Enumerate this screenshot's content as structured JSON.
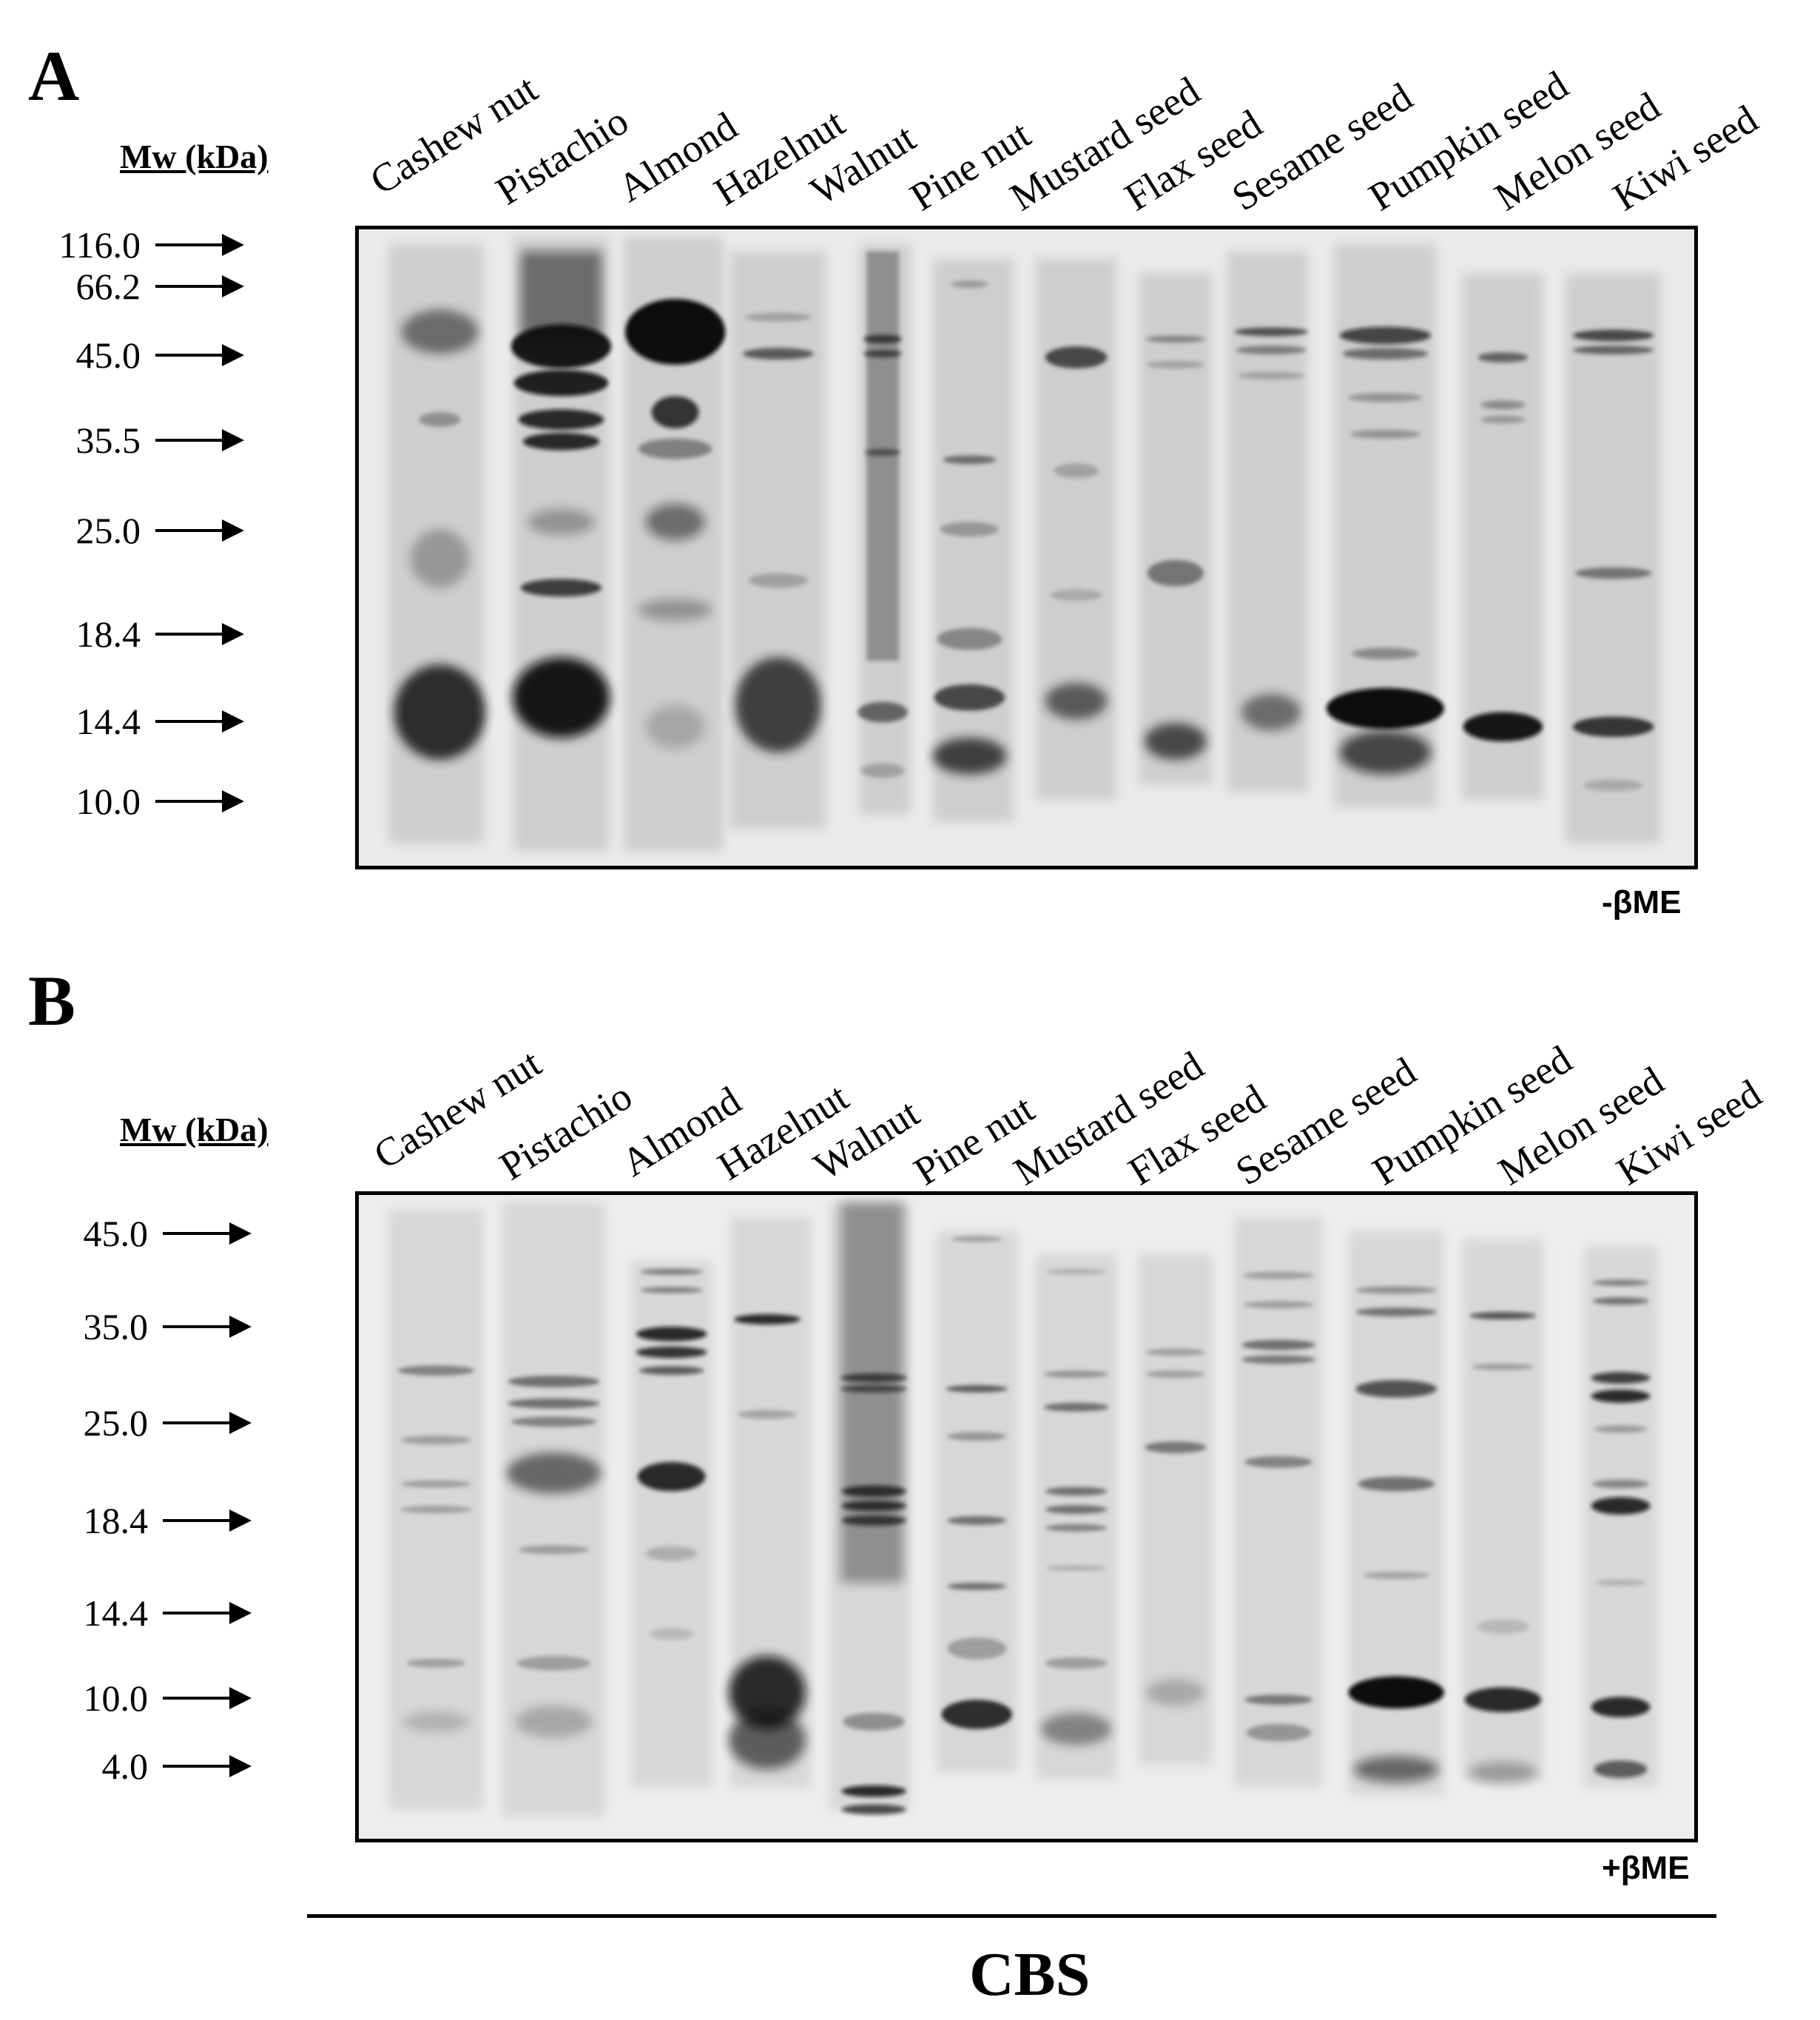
{
  "panel_a": {
    "letter": "A",
    "mw_heading": "Mw (kDa)",
    "lanes": [
      "Cashew nut",
      "Pistachio",
      "Almond",
      "Hazelnut",
      "Walnut",
      "Pine nut",
      "Mustard seed",
      "Flax seed",
      "Sesame seed",
      "Pumpkin seed",
      "Melon seed",
      "Kiwi seed"
    ],
    "markers": [
      "116.0",
      "66.2",
      "45.0",
      "35.5",
      "25.0",
      "18.4",
      "14.4",
      "10.0"
    ],
    "condition": "-βME"
  },
  "panel_b": {
    "letter": "B",
    "mw_heading": "Mw (kDa)",
    "lanes": [
      "Cashew nut",
      "Pistachio",
      "Almond",
      "Hazelnut",
      "Walnut",
      "Pine nut",
      "Mustard seed",
      "Flax seed",
      "Sesame seed",
      "Pumpkin seed",
      "Melon seed",
      "Kiwi seed"
    ],
    "markers": [
      "45.0",
      "35.0",
      "25.0",
      "18.4",
      "14.4",
      "10.0",
      "4.0"
    ],
    "condition": "+βME"
  },
  "group_label": "CBS",
  "colors": {
    "gel_background": "#ececec",
    "band": "#1a1a1a"
  }
}
